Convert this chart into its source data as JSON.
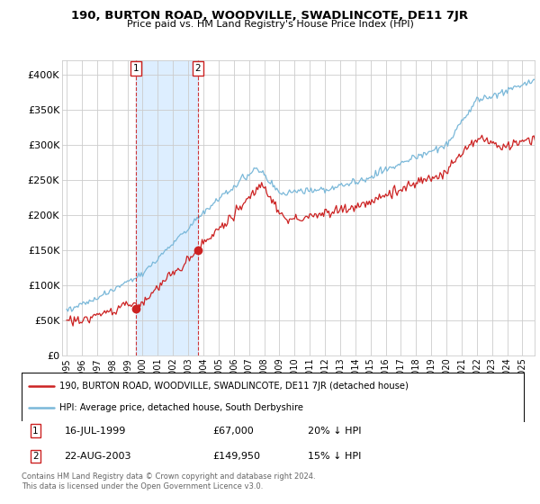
{
  "title": "190, BURTON ROAD, WOODVILLE, SWADLINCOTE, DE11 7JR",
  "subtitle": "Price paid vs. HM Land Registry's House Price Index (HPI)",
  "sale1_date": "16-JUL-1999",
  "sale1_price": 67000,
  "sale1_label": "20% ↓ HPI",
  "sale2_date": "22-AUG-2003",
  "sale2_price": 149950,
  "sale2_label": "15% ↓ HPI",
  "legend_line1": "190, BURTON ROAD, WOODVILLE, SWADLINCOTE, DE11 7JR (detached house)",
  "legend_line2": "HPI: Average price, detached house, South Derbyshire",
  "footer1": "Contains HM Land Registry data © Crown copyright and database right 2024.",
  "footer2": "This data is licensed under the Open Government Licence v3.0.",
  "hpi_color": "#7ab8d9",
  "price_color": "#cc2222",
  "shade_color": "#ddeeff",
  "background_color": "#ffffff",
  "grid_color": "#cccccc",
  "ylim": [
    0,
    420000
  ],
  "yticks": [
    0,
    50000,
    100000,
    150000,
    200000,
    250000,
    300000,
    350000,
    400000
  ],
  "ytick_labels": [
    "£0",
    "£50K",
    "£100K",
    "£150K",
    "£200K",
    "£250K",
    "£300K",
    "£350K",
    "£400K"
  ],
  "xstart": 1995,
  "xend": 2025
}
